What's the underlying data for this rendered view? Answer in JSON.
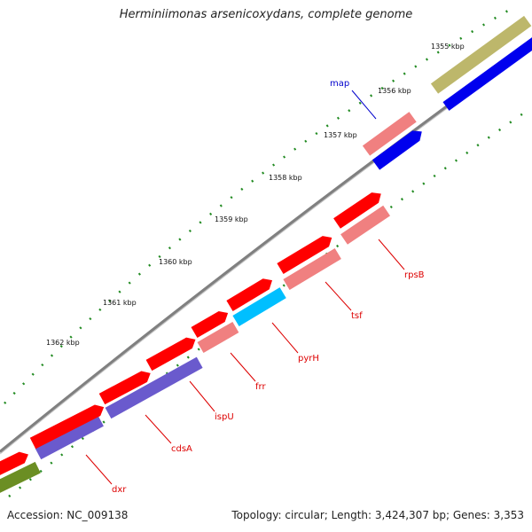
{
  "title": "Herminiimonas arsenicoxydans, complete genome",
  "footer": {
    "accession": "Accession: NC_009138",
    "topology": "Topology: circular; Length: 3,424,307 bp; Genes: 3,353"
  },
  "scale_labels": [
    "1355 kbp",
    "1356 kbp",
    "1357 kbp",
    "1358 kbp",
    "1359 kbp",
    "1360 kbp",
    "1361 kbp",
    "1362 kbp"
  ],
  "gene_labels": [
    "map",
    "rpsB",
    "tsf",
    "pyrH",
    "frr",
    "ispU",
    "cdsA",
    "dxr"
  ],
  "colors": {
    "red": "#ff0000",
    "pink": "#f08080",
    "blue": "#0000ee",
    "cyan": "#00bfff",
    "purple": "#6a5acd",
    "olive": "#6b8e23",
    "khaki": "#bdb76b",
    "backbone": "#808080",
    "tick": "#228b22",
    "label_red": "#dd0000",
    "label_blue": "#0000cc"
  }
}
